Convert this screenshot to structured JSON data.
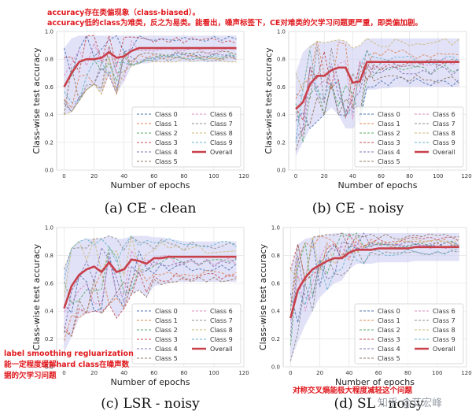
{
  "notes": {
    "top_line1": "accuracy存在类偏现象（class-biased）。",
    "top_line2": "accuracy低的class为难类，反之为易类。能看出，噪声标签下，CE对难类的欠学习问题更严重，即类偏加剧。",
    "lsr_line1": "label smoothing regluarization",
    "lsr_line2": "能一定程度缓解hard class在噪声数",
    "lsr_line3": "据的欠学习问题",
    "sl_note": "对称交叉熵能极大程度减轻这个问题",
    "watermark": "知乎 @艾宏峰"
  },
  "series_colors": [
    "#4c72b0",
    "#dd8452",
    "#55a868",
    "#c44e52",
    "#8172b3",
    "#937860",
    "#da8bc3",
    "#8c8c8c",
    "#ccb974",
    "#64b5cd"
  ],
  "overall_color": "#c8404a",
  "band_color": "#c9c9f0",
  "chart_data": [
    {
      "type": "line",
      "caption": "(a) CE - clean",
      "xlabel": "Number of epochs",
      "ylabel": "Class-wise test accuracy",
      "xlim": [
        -5,
        120
      ],
      "ylim": [
        0,
        1.0
      ],
      "xticks": [
        0,
        20,
        40,
        60,
        80,
        100,
        120
      ],
      "yticks": [
        0.0,
        0.2,
        0.4,
        0.6,
        0.8,
        1.0
      ],
      "x": [
        0,
        5,
        10,
        15,
        20,
        25,
        30,
        35,
        40,
        45,
        50,
        55,
        60,
        65,
        70,
        75,
        80,
        85,
        90,
        95,
        100,
        105,
        110,
        115
      ],
      "overall": [
        0.6,
        0.7,
        0.78,
        0.8,
        0.8,
        0.81,
        0.85,
        0.81,
        0.82,
        0.86,
        0.88,
        0.88,
        0.88,
        0.88,
        0.88,
        0.88,
        0.88,
        0.88,
        0.88,
        0.88,
        0.88,
        0.88,
        0.88,
        0.88
      ],
      "band_upper": [
        0.88,
        0.95,
        0.97,
        0.97,
        0.97,
        0.97,
        0.97,
        0.97,
        0.97,
        0.97,
        0.97,
        0.97,
        0.97,
        0.97,
        0.97,
        0.97,
        0.97,
        0.97,
        0.97,
        0.97,
        0.97,
        0.97,
        0.97,
        0.97
      ],
      "band_lower": [
        0.4,
        0.42,
        0.5,
        0.58,
        0.62,
        0.55,
        0.68,
        0.55,
        0.64,
        0.75,
        0.77,
        0.77,
        0.78,
        0.78,
        0.78,
        0.78,
        0.78,
        0.78,
        0.78,
        0.78,
        0.78,
        0.78,
        0.78,
        0.78
      ],
      "legend": {
        "items": [
          "Class 0",
          "Class 1",
          "Class 2",
          "Class 3",
          "Class 4",
          "Class 5",
          "Class 6",
          "Class 7",
          "Class 8",
          "Class 9",
          "Overall"
        ]
      }
    },
    {
      "type": "line",
      "caption": "(b) CE - noisy",
      "xlabel": "Number of epochs",
      "ylabel": "Class-wise test accuracy",
      "xlim": [
        -5,
        120
      ],
      "ylim": [
        0,
        1.0
      ],
      "xticks": [
        0,
        20,
        40,
        60,
        80,
        100,
        120
      ],
      "yticks": [
        0.0,
        0.2,
        0.4,
        0.6,
        0.8,
        1.0
      ],
      "x": [
        0,
        5,
        10,
        15,
        20,
        25,
        30,
        35,
        40,
        45,
        50,
        55,
        60,
        65,
        70,
        75,
        80,
        85,
        90,
        95,
        100,
        105,
        110,
        115
      ],
      "overall": [
        0.44,
        0.49,
        0.62,
        0.68,
        0.68,
        0.72,
        0.74,
        0.74,
        0.63,
        0.64,
        0.78,
        0.78,
        0.78,
        0.78,
        0.78,
        0.78,
        0.78,
        0.78,
        0.78,
        0.78,
        0.78,
        0.78,
        0.78,
        0.78
      ],
      "band_upper": [
        0.7,
        0.85,
        0.9,
        0.93,
        0.92,
        0.93,
        0.94,
        0.93,
        0.88,
        0.9,
        0.95,
        0.95,
        0.95,
        0.95,
        0.95,
        0.95,
        0.95,
        0.95,
        0.95,
        0.95,
        0.95,
        0.95,
        0.95,
        0.95
      ],
      "band_lower": [
        0.1,
        0.2,
        0.3,
        0.35,
        0.4,
        0.45,
        0.4,
        0.3,
        0.3,
        0.35,
        0.58,
        0.58,
        0.59,
        0.59,
        0.6,
        0.6,
        0.6,
        0.6,
        0.6,
        0.6,
        0.6,
        0.6,
        0.6,
        0.6
      ],
      "legend": {
        "items": [
          "Class 0",
          "Class 1",
          "Class 2",
          "Class 3",
          "Class 4",
          "Class 5",
          "Class 6",
          "Class 7",
          "Class 8",
          "Class 9",
          "Overall"
        ]
      }
    },
    {
      "type": "line",
      "caption": "(c) LSR - noisy",
      "xlabel": "Number of epochs",
      "ylabel": "Class-wise test accuracy",
      "xlim": [
        -5,
        120
      ],
      "ylim": [
        0,
        1.0
      ],
      "xticks": [
        0,
        20,
        40,
        60,
        80,
        100,
        120
      ],
      "yticks": [
        0.0,
        0.2,
        0.4,
        0.6,
        0.8,
        1.0
      ],
      "x": [
        0,
        5,
        10,
        15,
        20,
        25,
        30,
        35,
        40,
        45,
        50,
        55,
        60,
        65,
        70,
        75,
        80,
        85,
        90,
        95,
        100,
        105,
        110,
        115
      ],
      "overall": [
        0.42,
        0.58,
        0.66,
        0.7,
        0.72,
        0.68,
        0.75,
        0.68,
        0.7,
        0.77,
        0.76,
        0.74,
        0.78,
        0.78,
        0.79,
        0.79,
        0.79,
        0.79,
        0.79,
        0.79,
        0.79,
        0.79,
        0.79,
        0.79
      ],
      "band_upper": [
        0.7,
        0.85,
        0.9,
        0.92,
        0.92,
        0.92,
        0.94,
        0.92,
        0.92,
        0.94,
        0.94,
        0.94,
        0.93,
        0.93,
        0.92,
        0.91,
        0.9,
        0.9,
        0.9,
        0.9,
        0.9,
        0.9,
        0.9,
        0.9
      ],
      "band_lower": [
        0.1,
        0.22,
        0.35,
        0.38,
        0.4,
        0.38,
        0.45,
        0.35,
        0.42,
        0.52,
        0.55,
        0.5,
        0.58,
        0.59,
        0.6,
        0.61,
        0.61,
        0.61,
        0.61,
        0.61,
        0.61,
        0.61,
        0.61,
        0.61
      ],
      "legend": {
        "items": [
          "Class 0",
          "Class 1",
          "Class 2",
          "Class 3",
          "Class 4",
          "Class 5",
          "Class 6",
          "Class 7",
          "Class 8",
          "Class 9",
          "Overall"
        ]
      }
    },
    {
      "type": "line",
      "caption": "(d) SL - noisy",
      "xlabel": "Number of epochs",
      "ylabel": "Class-wise test accuracy",
      "xlim": [
        -5,
        120
      ],
      "ylim": [
        0,
        1.0
      ],
      "xticks": [
        0,
        20,
        40,
        60,
        80,
        100,
        120
      ],
      "yticks": [
        0.0,
        0.2,
        0.4,
        0.6,
        0.8,
        1.0
      ],
      "x": [
        0,
        5,
        10,
        15,
        20,
        25,
        30,
        35,
        40,
        45,
        50,
        55,
        60,
        65,
        70,
        75,
        80,
        85,
        90,
        95,
        100,
        105,
        110,
        115
      ],
      "overall": [
        0.35,
        0.55,
        0.64,
        0.7,
        0.73,
        0.76,
        0.78,
        0.78,
        0.82,
        0.84,
        0.84,
        0.84,
        0.85,
        0.85,
        0.85,
        0.85,
        0.85,
        0.86,
        0.86,
        0.86,
        0.86,
        0.86,
        0.86,
        0.86
      ],
      "band_upper": [
        0.7,
        0.88,
        0.92,
        0.93,
        0.94,
        0.95,
        0.96,
        0.96,
        0.96,
        0.96,
        0.96,
        0.96,
        0.96,
        0.96,
        0.96,
        0.96,
        0.96,
        0.96,
        0.96,
        0.96,
        0.96,
        0.96,
        0.96,
        0.96
      ],
      "band_lower": [
        0.04,
        0.18,
        0.3,
        0.4,
        0.5,
        0.55,
        0.6,
        0.62,
        0.7,
        0.74,
        0.74,
        0.74,
        0.75,
        0.75,
        0.75,
        0.75,
        0.75,
        0.76,
        0.76,
        0.76,
        0.76,
        0.76,
        0.76,
        0.76
      ],
      "legend": {
        "items": [
          "Class 0",
          "Class 1",
          "Class 2",
          "Class 3",
          "Class 4",
          "Class 5",
          "Class 6",
          "Class 7",
          "Class 8",
          "Class 9",
          "Overall"
        ]
      }
    }
  ]
}
